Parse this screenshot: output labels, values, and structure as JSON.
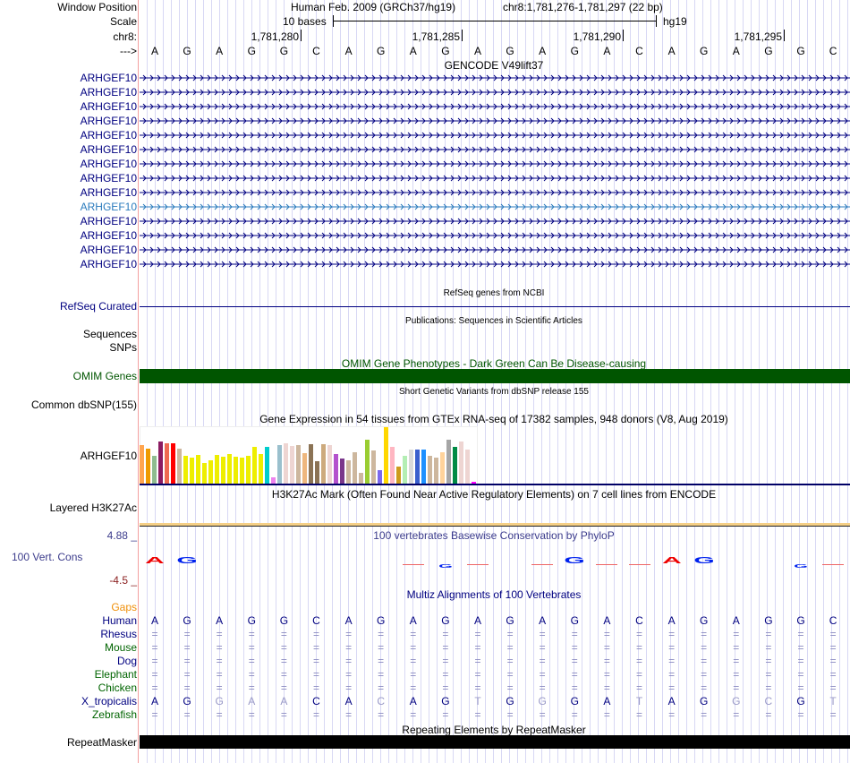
{
  "header": {
    "window_position_label": "Window Position",
    "assembly": "Human Feb. 2009 (GRCh37/hg19)",
    "position": "chr8:1,781,276-1,781,297 (22 bp)",
    "scale_label": "Scale",
    "scale_bar_text": "10 bases",
    "scale_db": "hg19",
    "chrom_label": "chr8:",
    "strand_label": "--->",
    "ticks": [
      "1,781,280",
      "1,781,285",
      "1,781,290",
      "1,781,295"
    ]
  },
  "sequence": [
    "A",
    "G",
    "A",
    "G",
    "G",
    "C",
    "A",
    "G",
    "A",
    "G",
    "A",
    "G",
    "A",
    "G",
    "A",
    "C",
    "A",
    "G",
    "A",
    "G",
    "G",
    "C"
  ],
  "gencode": {
    "title": "GENCODE V49lift37",
    "gene_name": "ARHGEF10",
    "rows": 14,
    "highlight_row": 9,
    "color": "#000080",
    "highlight_color": "#2b7bbd"
  },
  "refseq": {
    "title": "RefSeq genes from NCBI",
    "label": "RefSeq Curated"
  },
  "publications": {
    "title": "Publications: Sequences in Scientific Articles",
    "labels": [
      "Sequences",
      "SNPs"
    ]
  },
  "omim": {
    "title": "OMIM Gene Phenotypes - Dark Green Can Be Disease-causing",
    "label": "OMIM Genes",
    "color": "#005500"
  },
  "dbsnp": {
    "title": "Short Genetic Variants from dbSNP release 155",
    "label": "Common dbSNP(155)"
  },
  "gtex": {
    "title": "Gene Expression in 54 tissues from GTEx RNA-seq of 17382 samples, 948 donors (V8, Aug 2019)",
    "label": "ARHGEF10",
    "values": [
      130,
      118,
      94,
      142,
      136,
      136,
      118,
      94,
      88,
      97,
      70,
      79,
      97,
      91,
      100,
      91,
      88,
      94,
      124,
      100,
      124,
      22,
      130,
      136,
      127,
      130,
      103,
      133,
      76,
      133,
      130,
      100,
      85,
      79,
      106,
      37,
      148,
      112,
      46,
      190,
      124,
      58,
      94,
      115,
      115,
      115,
      94,
      88,
      106,
      148,
      124,
      142,
      115,
      7
    ],
    "colors": [
      "#FFA54F",
      "#EE9A00",
      "#8FBC8F",
      "#8B1C62",
      "#EE6A50",
      "#FF0000",
      "#CDB79E",
      "#EEEE00",
      "#EEEE00",
      "#EEEE00",
      "#EEEE00",
      "#EEEE00",
      "#EEEE00",
      "#EEEE00",
      "#EEEE00",
      "#EEEE00",
      "#EEEE00",
      "#EEEE00",
      "#EEEE00",
      "#EEEE00",
      "#00CDCD",
      "#EE82EE",
      "#9AC0CD",
      "#EED5D2",
      "#EED5D2",
      "#CDB79E",
      "#EEB77E",
      "#8B7355",
      "#8B7355",
      "#CDAA7D",
      "#EED5D2",
      "#B452CD",
      "#7A378B",
      "#CDB79E",
      "#CDB79E",
      "#CDB79E",
      "#9ACD32",
      "#CDB79E",
      "#7B68EE",
      "#FFD700",
      "#FFB6C1",
      "#CD9B1D",
      "#B4EEB4",
      "#D9D9D9",
      "#3A5FCD",
      "#1E90FF",
      "#CDB79E",
      "#CDB79E",
      "#FFD39B",
      "#A6A6A6",
      "#008B45",
      "#EED5D2",
      "#EED5D2",
      "#FF00FF"
    ]
  },
  "h3k27ac": {
    "title": "H3K27Ac Mark (Often Found Near Active Regulatory Elements) on 7 cell lines from ENCODE",
    "label": "Layered H3K27Ac"
  },
  "conservation": {
    "title": "100 vertebrates Basewise Conservation by PhyloP",
    "label": "100 Vert. Cons",
    "max": "4.88 _",
    "min": "-4.5 _",
    "logo": [
      {
        "i": 0,
        "b": "A",
        "big": true
      },
      {
        "i": 1,
        "b": "G",
        "big": true
      },
      {
        "i": 8,
        "b": "-",
        "big": false
      },
      {
        "i": 9,
        "b": "G",
        "big": false
      },
      {
        "i": 10,
        "b": "-",
        "big": false
      },
      {
        "i": 12,
        "b": "-",
        "big": false
      },
      {
        "i": 13,
        "b": "G",
        "big": true
      },
      {
        "i": 14,
        "b": "-",
        "big": false
      },
      {
        "i": 15,
        "b": "-",
        "big": false
      },
      {
        "i": 16,
        "b": "A",
        "big": true
      },
      {
        "i": 17,
        "b": "G",
        "big": true
      },
      {
        "i": 20,
        "b": "G",
        "big": false
      },
      {
        "i": 21,
        "b": "-",
        "big": false
      }
    ]
  },
  "multiz": {
    "title": "Multiz Alignments of 100 Vertebrates",
    "gaps_label": "Gaps",
    "species": [
      {
        "name": "Human",
        "color": "#000080",
        "bases": [
          "A",
          "G",
          "A",
          "G",
          "G",
          "C",
          "A",
          "G",
          "A",
          "G",
          "A",
          "G",
          "A",
          "G",
          "A",
          "C",
          "A",
          "G",
          "A",
          "G",
          "G",
          "C"
        ]
      },
      {
        "name": "Rhesus",
        "color": "#000080",
        "bases": "="
      },
      {
        "name": "Mouse",
        "color": "#006400",
        "bases": "="
      },
      {
        "name": "Dog",
        "color": "#000080",
        "bases": "="
      },
      {
        "name": "Elephant",
        "color": "#006400",
        "bases": "="
      },
      {
        "name": "Chicken",
        "color": "#006400",
        "bases": "="
      },
      {
        "name": "X_tropicalis",
        "color": "#000080",
        "bases": [
          "A",
          "G",
          "G",
          "A",
          "A",
          "C",
          "A",
          "C",
          "A",
          "G",
          "T",
          "G",
          "G",
          "G",
          "A",
          "T",
          "A",
          "G",
          "G",
          "C",
          "G",
          "T"
        ]
      },
      {
        "name": "Zebrafish",
        "color": "#006400",
        "bases": "="
      }
    ]
  },
  "repeatmasker": {
    "title": "Repeating Elements by RepeatMasker",
    "label": "RepeatMasker"
  }
}
